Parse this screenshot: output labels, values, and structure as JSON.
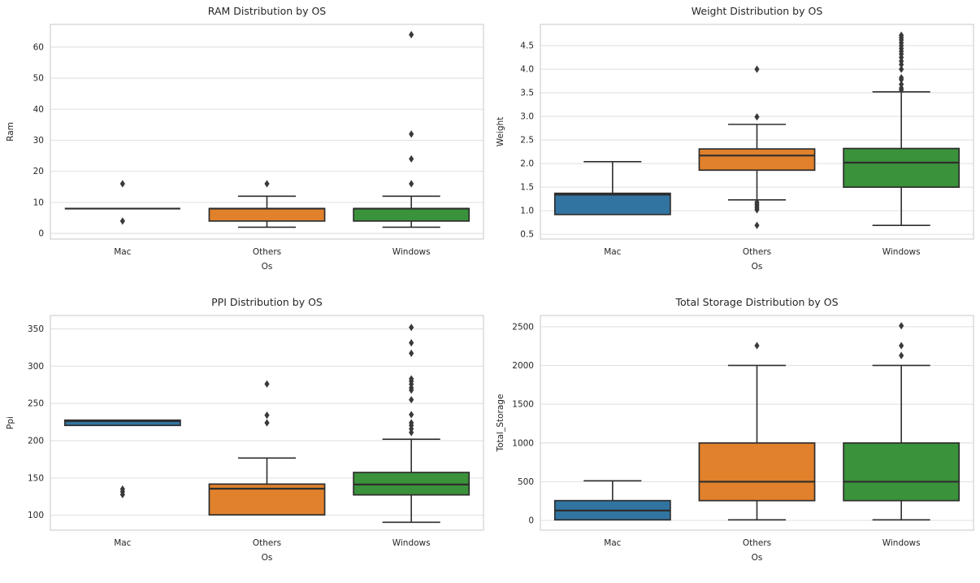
{
  "figure_background": "#ffffff",
  "palette": {
    "mac_box": "#3274a1",
    "others_box": "#e1812c",
    "windows_box": "#3a923a",
    "box_edge": "#2e2e2e",
    "whisker": "#2e2e2e",
    "median_line": "#2e2e2e",
    "outlier": "#3a3a3a",
    "grid_line": "#e3e3e3",
    "axis_border": "#d0d0d0",
    "text": "#262626"
  },
  "chart_data": [
    {
      "type": "boxplot",
      "title": "RAM Distribution by OS",
      "xlabel": "Os",
      "ylabel": "Ram",
      "categories": [
        "Mac",
        "Others",
        "Windows"
      ],
      "legend": "none",
      "grid": "horizontal",
      "yticks": [
        0,
        10,
        20,
        30,
        40,
        50,
        60
      ],
      "ytick_labels": [
        "0",
        "10",
        "20",
        "30",
        "40",
        "50",
        "60"
      ],
      "ylim": [
        -1.8,
        67.3
      ],
      "series": [
        {
          "category": "Mac",
          "color": "mac_box",
          "whisker_low": 8,
          "q1": 8,
          "median": 8,
          "q3": 8,
          "whisker_high": 8,
          "outliers": [
            4,
            16
          ]
        },
        {
          "category": "Others",
          "color": "others_box",
          "whisker_low": 2,
          "q1": 4,
          "median": 8,
          "q3": 8,
          "whisker_high": 12,
          "outliers": [
            16
          ]
        },
        {
          "category": "Windows",
          "color": "windows_box",
          "whisker_low": 2,
          "q1": 4,
          "median": 8,
          "q3": 8,
          "whisker_high": 12,
          "outliers": [
            16,
            24,
            32,
            64
          ]
        }
      ]
    },
    {
      "type": "boxplot",
      "title": "Weight Distribution by OS",
      "xlabel": "Os",
      "ylabel": "Weight",
      "categories": [
        "Mac",
        "Others",
        "Windows"
      ],
      "legend": "none",
      "grid": "horizontal",
      "yticks": [
        0.5,
        1.0,
        1.5,
        2.0,
        2.5,
        3.0,
        3.5,
        4.0,
        4.5
      ],
      "ytick_labels": [
        "0.5",
        "1.0",
        "1.5",
        "2.0",
        "2.5",
        "3.0",
        "3.5",
        "4.0",
        "4.5"
      ],
      "ylim": [
        0.4,
        4.95
      ],
      "series": [
        {
          "category": "Mac",
          "color": "mac_box",
          "whisker_low": 0.92,
          "q1": 0.92,
          "median": 1.34,
          "q3": 1.37,
          "whisker_high": 2.04,
          "outliers": []
        },
        {
          "category": "Others",
          "color": "others_box",
          "whisker_low": 1.23,
          "q1": 1.86,
          "median": 2.17,
          "q3": 2.31,
          "whisker_high": 2.83,
          "outliers": [
            0.69,
            1.02,
            1.06,
            1.1,
            1.14,
            1.18,
            2.99,
            4.0
          ]
        },
        {
          "category": "Windows",
          "color": "windows_box",
          "whisker_low": 0.69,
          "q1": 1.5,
          "median": 2.02,
          "q3": 2.32,
          "whisker_high": 3.52,
          "outliers": [
            3.56,
            3.6,
            3.68,
            3.78,
            3.82,
            4.0,
            4.1,
            4.17,
            4.25,
            4.32,
            4.38,
            4.44,
            4.5,
            4.56,
            4.62,
            4.67,
            4.72
          ]
        }
      ]
    },
    {
      "type": "boxplot",
      "title": "PPI Distribution by OS",
      "xlabel": "Os",
      "ylabel": "Ppi",
      "categories": [
        "Mac",
        "Others",
        "Windows"
      ],
      "legend": "none",
      "grid": "horizontal",
      "yticks": [
        100,
        150,
        200,
        250,
        300,
        350
      ],
      "ytick_labels": [
        "100",
        "150",
        "200",
        "250",
        "300",
        "350"
      ],
      "ylim": [
        80,
        368
      ],
      "series": [
        {
          "category": "Mac",
          "color": "mac_box",
          "whisker_low": 220.5,
          "q1": 220.5,
          "median": 226.4,
          "q3": 227.6,
          "whisker_high": 227.6,
          "outliers": [
            127.7,
            131.6,
            135.1
          ]
        },
        {
          "category": "Others",
          "color": "others_box",
          "whisker_low": 100.5,
          "q1": 100.5,
          "median": 135.6,
          "q3": 141.8,
          "whisker_high": 176.8,
          "outliers": [
            224.0,
            234.2,
            276.1
          ]
        },
        {
          "category": "Windows",
          "color": "windows_box",
          "whisker_low": 90.6,
          "q1": 127.3,
          "median": 141.2,
          "q3": 157.4,
          "whisker_high": 202.0,
          "outliers": [
            211,
            216,
            220.5,
            224,
            235,
            255,
            267.9,
            271,
            275.8,
            279.8,
            283,
            317.3,
            331.3,
            352.0
          ]
        }
      ]
    },
    {
      "type": "boxplot",
      "title": "Total Storage Distribution by OS",
      "xlabel": "Os",
      "ylabel": "Total_Storage",
      "categories": [
        "Mac",
        "Others",
        "Windows"
      ],
      "legend": "none",
      "grid": "horizontal",
      "yticks": [
        0,
        500,
        1000,
        1500,
        2000,
        2500
      ],
      "ytick_labels": [
        "0",
        "500",
        "1000",
        "1500",
        "2000",
        "2500"
      ],
      "ylim": [
        -125,
        2645
      ],
      "series": [
        {
          "category": "Mac",
          "color": "mac_box",
          "whisker_low": 8,
          "q1": 8,
          "median": 128,
          "q3": 256,
          "whisker_high": 512,
          "outliers": []
        },
        {
          "category": "Others",
          "color": "others_box",
          "whisker_low": 8,
          "q1": 256,
          "median": 500,
          "q3": 1000,
          "whisker_high": 2000,
          "outliers": [
            2256
          ]
        },
        {
          "category": "Windows",
          "color": "windows_box",
          "whisker_low": 8,
          "q1": 256,
          "median": 500,
          "q3": 1000,
          "whisker_high": 2000,
          "outliers": [
            2128,
            2256,
            2512
          ]
        }
      ]
    }
  ]
}
